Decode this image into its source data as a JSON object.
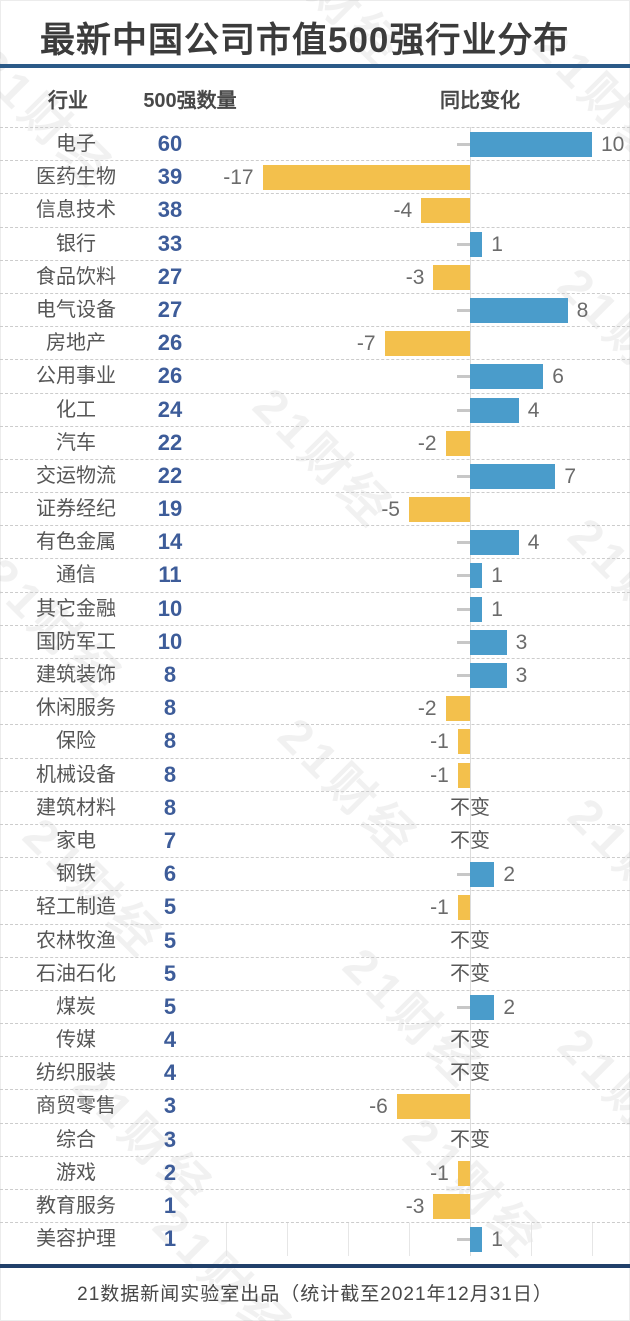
{
  "page": {
    "title": "最新中国公司市值500强行业分布",
    "footer": "21数据新闻实验室出品（统计截至2021年12月31日）",
    "watermark": "21财经"
  },
  "table": {
    "col_industry": "行业",
    "col_count": "500强数量",
    "col_change": "同比变化",
    "unchanged_label": "不变"
  },
  "colors": {
    "positive_bar": "#4A9CCB",
    "negative_bar": "#F3C04C",
    "count_text": "#3D5C99",
    "title_rule": "#2B5A88",
    "footer_rule": "#21406A"
  },
  "chart_data": {
    "type": "bar",
    "orientation": "horizontal",
    "title": "最新中国公司市值500强行业分布",
    "xlabel": "同比变化",
    "ylabel": "行业",
    "xlim": [
      -20,
      12
    ],
    "legend": "none",
    "grid": "dashed row separators, zero axis line",
    "categories": [
      "电子",
      "医药生物",
      "信息技术",
      "银行",
      "食品饮料",
      "电气设备",
      "房地产",
      "公用事业",
      "化工",
      "汽车",
      "交运物流",
      "证券经纪",
      "有色金属",
      "通信",
      "其它金融",
      "国防军工",
      "建筑装饰",
      "休闲服务",
      "保险",
      "机械设备",
      "建筑材料",
      "家电",
      "钢铁",
      "轻工制造",
      "农林牧渔",
      "石油石化",
      "煤炭",
      "传媒",
      "纺织服装",
      "商贸零售",
      "综合",
      "游戏",
      "教育服务",
      "美容护理"
    ],
    "series": [
      {
        "name": "500强数量",
        "values": [
          60,
          39,
          38,
          33,
          27,
          27,
          26,
          26,
          24,
          22,
          22,
          19,
          14,
          11,
          10,
          10,
          8,
          8,
          8,
          8,
          8,
          7,
          6,
          5,
          5,
          5,
          5,
          4,
          4,
          3,
          3,
          2,
          1,
          1
        ]
      },
      {
        "name": "同比变化",
        "values": [
          10,
          -17,
          -4,
          1,
          -3,
          8,
          -7,
          6,
          4,
          -2,
          7,
          -5,
          4,
          1,
          1,
          3,
          3,
          -2,
          -1,
          -1,
          0,
          0,
          2,
          -1,
          0,
          0,
          2,
          0,
          0,
          -6,
          0,
          -1,
          -3,
          1
        ]
      }
    ],
    "zero_change_display": "不变"
  }
}
